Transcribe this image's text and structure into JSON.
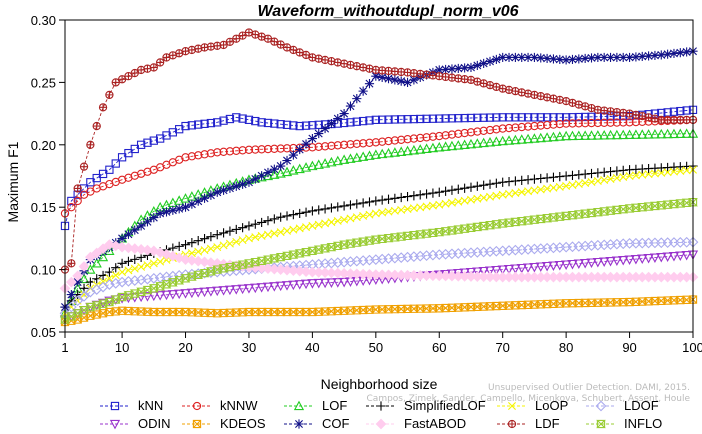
{
  "chart_data": {
    "type": "line",
    "title": "Waveform_withoutdupl_norm_v06",
    "xlabel": "Neighborhood size",
    "ylabel": "Maximum F1",
    "xlim": [
      1,
      100
    ],
    "ylim": [
      0.05,
      0.3
    ],
    "x_ticks": [
      1,
      10,
      20,
      30,
      40,
      50,
      60,
      70,
      80,
      90,
      100
    ],
    "y_ticks": [
      0.05,
      0.1,
      0.15,
      0.2,
      0.25,
      0.3
    ],
    "y_tick_labels": [
      "0.05",
      "0.10",
      "0.15",
      "0.20",
      "0.25",
      "0.30"
    ],
    "grid": false,
    "legend_position": "bottom",
    "watermark": [
      "Unsupervised Outlier Detection. DAMI, 2015.",
      "Campos, Zimek, Sander, Campello, Micenkova, Schubert, Assent, Houle"
    ],
    "series": [
      {
        "name": "kNN",
        "color": "#2222cc",
        "marker": "square",
        "points": [
          [
            1,
            0.135
          ],
          [
            2,
            0.155
          ],
          [
            3,
            0.16
          ],
          [
            5,
            0.17
          ],
          [
            8,
            0.18
          ],
          [
            10,
            0.19
          ],
          [
            13,
            0.2
          ],
          [
            16,
            0.205
          ],
          [
            18,
            0.21
          ],
          [
            20,
            0.215
          ],
          [
            25,
            0.218
          ],
          [
            28,
            0.222
          ],
          [
            32,
            0.218
          ],
          [
            38,
            0.215
          ],
          [
            44,
            0.217
          ],
          [
            50,
            0.22
          ],
          [
            60,
            0.221
          ],
          [
            70,
            0.222
          ],
          [
            80,
            0.222
          ],
          [
            90,
            0.223
          ],
          [
            100,
            0.228
          ]
        ]
      },
      {
        "name": "kNNW",
        "color": "#dd2222",
        "marker": "circle",
        "points": [
          [
            1,
            0.145
          ],
          [
            2,
            0.15
          ],
          [
            4,
            0.16
          ],
          [
            6,
            0.165
          ],
          [
            10,
            0.172
          ],
          [
            15,
            0.18
          ],
          [
            20,
            0.19
          ],
          [
            25,
            0.194
          ],
          [
            30,
            0.196
          ],
          [
            40,
            0.198
          ],
          [
            50,
            0.202
          ],
          [
            60,
            0.207
          ],
          [
            70,
            0.213
          ],
          [
            80,
            0.217
          ],
          [
            90,
            0.218
          ],
          [
            100,
            0.22
          ]
        ]
      },
      {
        "name": "LOF",
        "color": "#22cc22",
        "marker": "triangle-up",
        "points": [
          [
            1,
            0.065
          ],
          [
            3,
            0.085
          ],
          [
            5,
            0.1
          ],
          [
            8,
            0.115
          ],
          [
            10,
            0.125
          ],
          [
            13,
            0.14
          ],
          [
            16,
            0.15
          ],
          [
            20,
            0.157
          ],
          [
            25,
            0.165
          ],
          [
            30,
            0.172
          ],
          [
            35,
            0.177
          ],
          [
            40,
            0.183
          ],
          [
            45,
            0.188
          ],
          [
            50,
            0.192
          ],
          [
            60,
            0.198
          ],
          [
            70,
            0.203
          ],
          [
            80,
            0.207
          ],
          [
            90,
            0.208
          ],
          [
            100,
            0.209
          ]
        ]
      },
      {
        "name": "SimplifiedLOF",
        "color": "#000000",
        "marker": "plus",
        "points": [
          [
            1,
            0.07
          ],
          [
            3,
            0.08
          ],
          [
            5,
            0.09
          ],
          [
            8,
            0.098
          ],
          [
            10,
            0.105
          ],
          [
            15,
            0.113
          ],
          [
            20,
            0.12
          ],
          [
            25,
            0.128
          ],
          [
            30,
            0.135
          ],
          [
            35,
            0.142
          ],
          [
            40,
            0.147
          ],
          [
            45,
            0.151
          ],
          [
            50,
            0.155
          ],
          [
            60,
            0.162
          ],
          [
            70,
            0.17
          ],
          [
            80,
            0.175
          ],
          [
            90,
            0.18
          ],
          [
            100,
            0.183
          ]
        ]
      },
      {
        "name": "LoOP",
        "color": "#f5f500",
        "marker": "x",
        "points": [
          [
            1,
            0.065
          ],
          [
            3,
            0.075
          ],
          [
            5,
            0.085
          ],
          [
            8,
            0.093
          ],
          [
            10,
            0.098
          ],
          [
            15,
            0.105
          ],
          [
            20,
            0.112
          ],
          [
            25,
            0.118
          ],
          [
            30,
            0.125
          ],
          [
            35,
            0.13
          ],
          [
            40,
            0.135
          ],
          [
            45,
            0.14
          ],
          [
            50,
            0.145
          ],
          [
            60,
            0.152
          ],
          [
            70,
            0.16
          ],
          [
            80,
            0.167
          ],
          [
            90,
            0.175
          ],
          [
            100,
            0.18
          ]
        ]
      },
      {
        "name": "LDOF",
        "color": "#aaaaee",
        "marker": "diamond",
        "points": [
          [
            1,
            0.065
          ],
          [
            3,
            0.075
          ],
          [
            5,
            0.082
          ],
          [
            8,
            0.088
          ],
          [
            10,
            0.09
          ],
          [
            15,
            0.093
          ],
          [
            20,
            0.096
          ],
          [
            25,
            0.098
          ],
          [
            30,
            0.1
          ],
          [
            35,
            0.102
          ],
          [
            40,
            0.104
          ],
          [
            45,
            0.106
          ],
          [
            50,
            0.108
          ],
          [
            60,
            0.112
          ],
          [
            70,
            0.115
          ],
          [
            80,
            0.118
          ],
          [
            90,
            0.121
          ],
          [
            100,
            0.122
          ]
        ]
      },
      {
        "name": "ODIN",
        "color": "#9933cc",
        "marker": "triangle-down",
        "points": [
          [
            1,
            0.06
          ],
          [
            3,
            0.065
          ],
          [
            5,
            0.07
          ],
          [
            8,
            0.075
          ],
          [
            10,
            0.077
          ],
          [
            15,
            0.079
          ],
          [
            20,
            0.081
          ],
          [
            25,
            0.083
          ],
          [
            30,
            0.085
          ],
          [
            35,
            0.087
          ],
          [
            40,
            0.089
          ],
          [
            45,
            0.09
          ],
          [
            50,
            0.092
          ],
          [
            60,
            0.096
          ],
          [
            70,
            0.1
          ],
          [
            80,
            0.104
          ],
          [
            90,
            0.108
          ],
          [
            100,
            0.112
          ]
        ]
      },
      {
        "name": "KDEOS",
        "color": "#f0a000",
        "marker": "square-x",
        "points": [
          [
            1,
            0.058
          ],
          [
            3,
            0.06
          ],
          [
            5,
            0.063
          ],
          [
            8,
            0.066
          ],
          [
            10,
            0.067
          ],
          [
            15,
            0.066
          ],
          [
            20,
            0.066
          ],
          [
            25,
            0.065
          ],
          [
            30,
            0.066
          ],
          [
            35,
            0.066
          ],
          [
            40,
            0.066
          ],
          [
            45,
            0.067
          ],
          [
            50,
            0.068
          ],
          [
            60,
            0.069
          ],
          [
            70,
            0.071
          ],
          [
            80,
            0.073
          ],
          [
            90,
            0.074
          ],
          [
            100,
            0.076
          ]
        ]
      },
      {
        "name": "COF",
        "color": "#111188",
        "marker": "asterisk",
        "points": [
          [
            1,
            0.07
          ],
          [
            3,
            0.09
          ],
          [
            5,
            0.108
          ],
          [
            8,
            0.118
          ],
          [
            10,
            0.125
          ],
          [
            13,
            0.135
          ],
          [
            16,
            0.145
          ],
          [
            20,
            0.15
          ],
          [
            25,
            0.162
          ],
          [
            30,
            0.17
          ],
          [
            35,
            0.183
          ],
          [
            40,
            0.205
          ],
          [
            45,
            0.225
          ],
          [
            50,
            0.255
          ],
          [
            55,
            0.25
          ],
          [
            60,
            0.26
          ],
          [
            65,
            0.262
          ],
          [
            70,
            0.27
          ],
          [
            75,
            0.27
          ],
          [
            80,
            0.268
          ],
          [
            85,
            0.27
          ],
          [
            90,
            0.27
          ],
          [
            95,
            0.272
          ],
          [
            100,
            0.275
          ]
        ]
      },
      {
        "name": "FastABOD",
        "color": "#ffccee",
        "marker": "diamond-filled",
        "points": [
          [
            1,
            0.085
          ],
          [
            3,
            0.095
          ],
          [
            5,
            0.11
          ],
          [
            8,
            0.12
          ],
          [
            10,
            0.118
          ],
          [
            15,
            0.115
          ],
          [
            20,
            0.108
          ],
          [
            25,
            0.105
          ],
          [
            30,
            0.102
          ],
          [
            35,
            0.1
          ],
          [
            40,
            0.098
          ],
          [
            45,
            0.097
          ],
          [
            50,
            0.096
          ],
          [
            60,
            0.095
          ],
          [
            70,
            0.094
          ],
          [
            80,
            0.094
          ],
          [
            90,
            0.094
          ],
          [
            100,
            0.094
          ]
        ]
      },
      {
        "name": "LDF",
        "color": "#aa2222",
        "marker": "circle-plus",
        "points": [
          [
            1,
            0.1
          ],
          [
            2,
            0.105
          ],
          [
            3,
            0.165
          ],
          [
            5,
            0.2
          ],
          [
            7,
            0.23
          ],
          [
            9,
            0.25
          ],
          [
            11,
            0.255
          ],
          [
            13,
            0.26
          ],
          [
            15,
            0.262
          ],
          [
            17,
            0.27
          ],
          [
            20,
            0.275
          ],
          [
            23,
            0.278
          ],
          [
            26,
            0.28
          ],
          [
            30,
            0.29
          ],
          [
            33,
            0.285
          ],
          [
            36,
            0.278
          ],
          [
            40,
            0.27
          ],
          [
            45,
            0.265
          ],
          [
            50,
            0.26
          ],
          [
            55,
            0.258
          ],
          [
            60,
            0.255
          ],
          [
            65,
            0.252
          ],
          [
            70,
            0.245
          ],
          [
            75,
            0.24
          ],
          [
            80,
            0.235
          ],
          [
            85,
            0.228
          ],
          [
            90,
            0.225
          ],
          [
            95,
            0.22
          ],
          [
            100,
            0.22
          ]
        ]
      },
      {
        "name": "INFLO",
        "color": "#99cc33",
        "marker": "hourglass",
        "points": [
          [
            1,
            0.06
          ],
          [
            3,
            0.065
          ],
          [
            5,
            0.07
          ],
          [
            8,
            0.074
          ],
          [
            10,
            0.078
          ],
          [
            15,
            0.085
          ],
          [
            20,
            0.093
          ],
          [
            25,
            0.1
          ],
          [
            30,
            0.105
          ],
          [
            35,
            0.11
          ],
          [
            40,
            0.115
          ],
          [
            45,
            0.12
          ],
          [
            50,
            0.124
          ],
          [
            60,
            0.13
          ],
          [
            70,
            0.137
          ],
          [
            80,
            0.143
          ],
          [
            90,
            0.149
          ],
          [
            100,
            0.154
          ]
        ]
      }
    ]
  }
}
